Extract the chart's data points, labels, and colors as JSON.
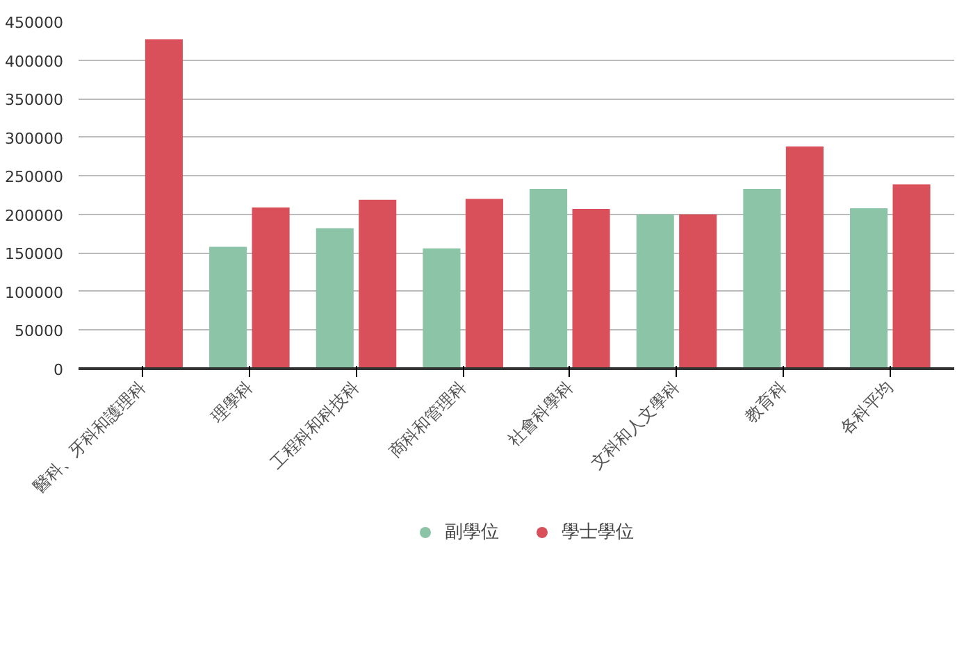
{
  "chart_data": {
    "type": "bar",
    "categories": [
      "醫科、牙科和護理科",
      "理學科",
      "工程科和科技科",
      "商科和管理科",
      "社會科學科",
      "文科和人文學科",
      "教育科",
      "各科平均"
    ],
    "series": [
      {
        "name": "副學位",
        "color": "#8cc4a8",
        "values": [
          null,
          158000,
          182000,
          156000,
          233000,
          200000,
          233000,
          208000
        ]
      },
      {
        "name": "學士學位",
        "color": "#d9505a",
        "values": [
          427000,
          209000,
          219000,
          220000,
          207000,
          200000,
          288000,
          239000
        ]
      }
    ],
    "ylim": [
      0,
      450000
    ],
    "yticks": [
      0,
      50000,
      100000,
      150000,
      200000,
      250000,
      300000,
      350000,
      400000,
      450000
    ],
    "grid": "y",
    "legend": "bottom"
  }
}
